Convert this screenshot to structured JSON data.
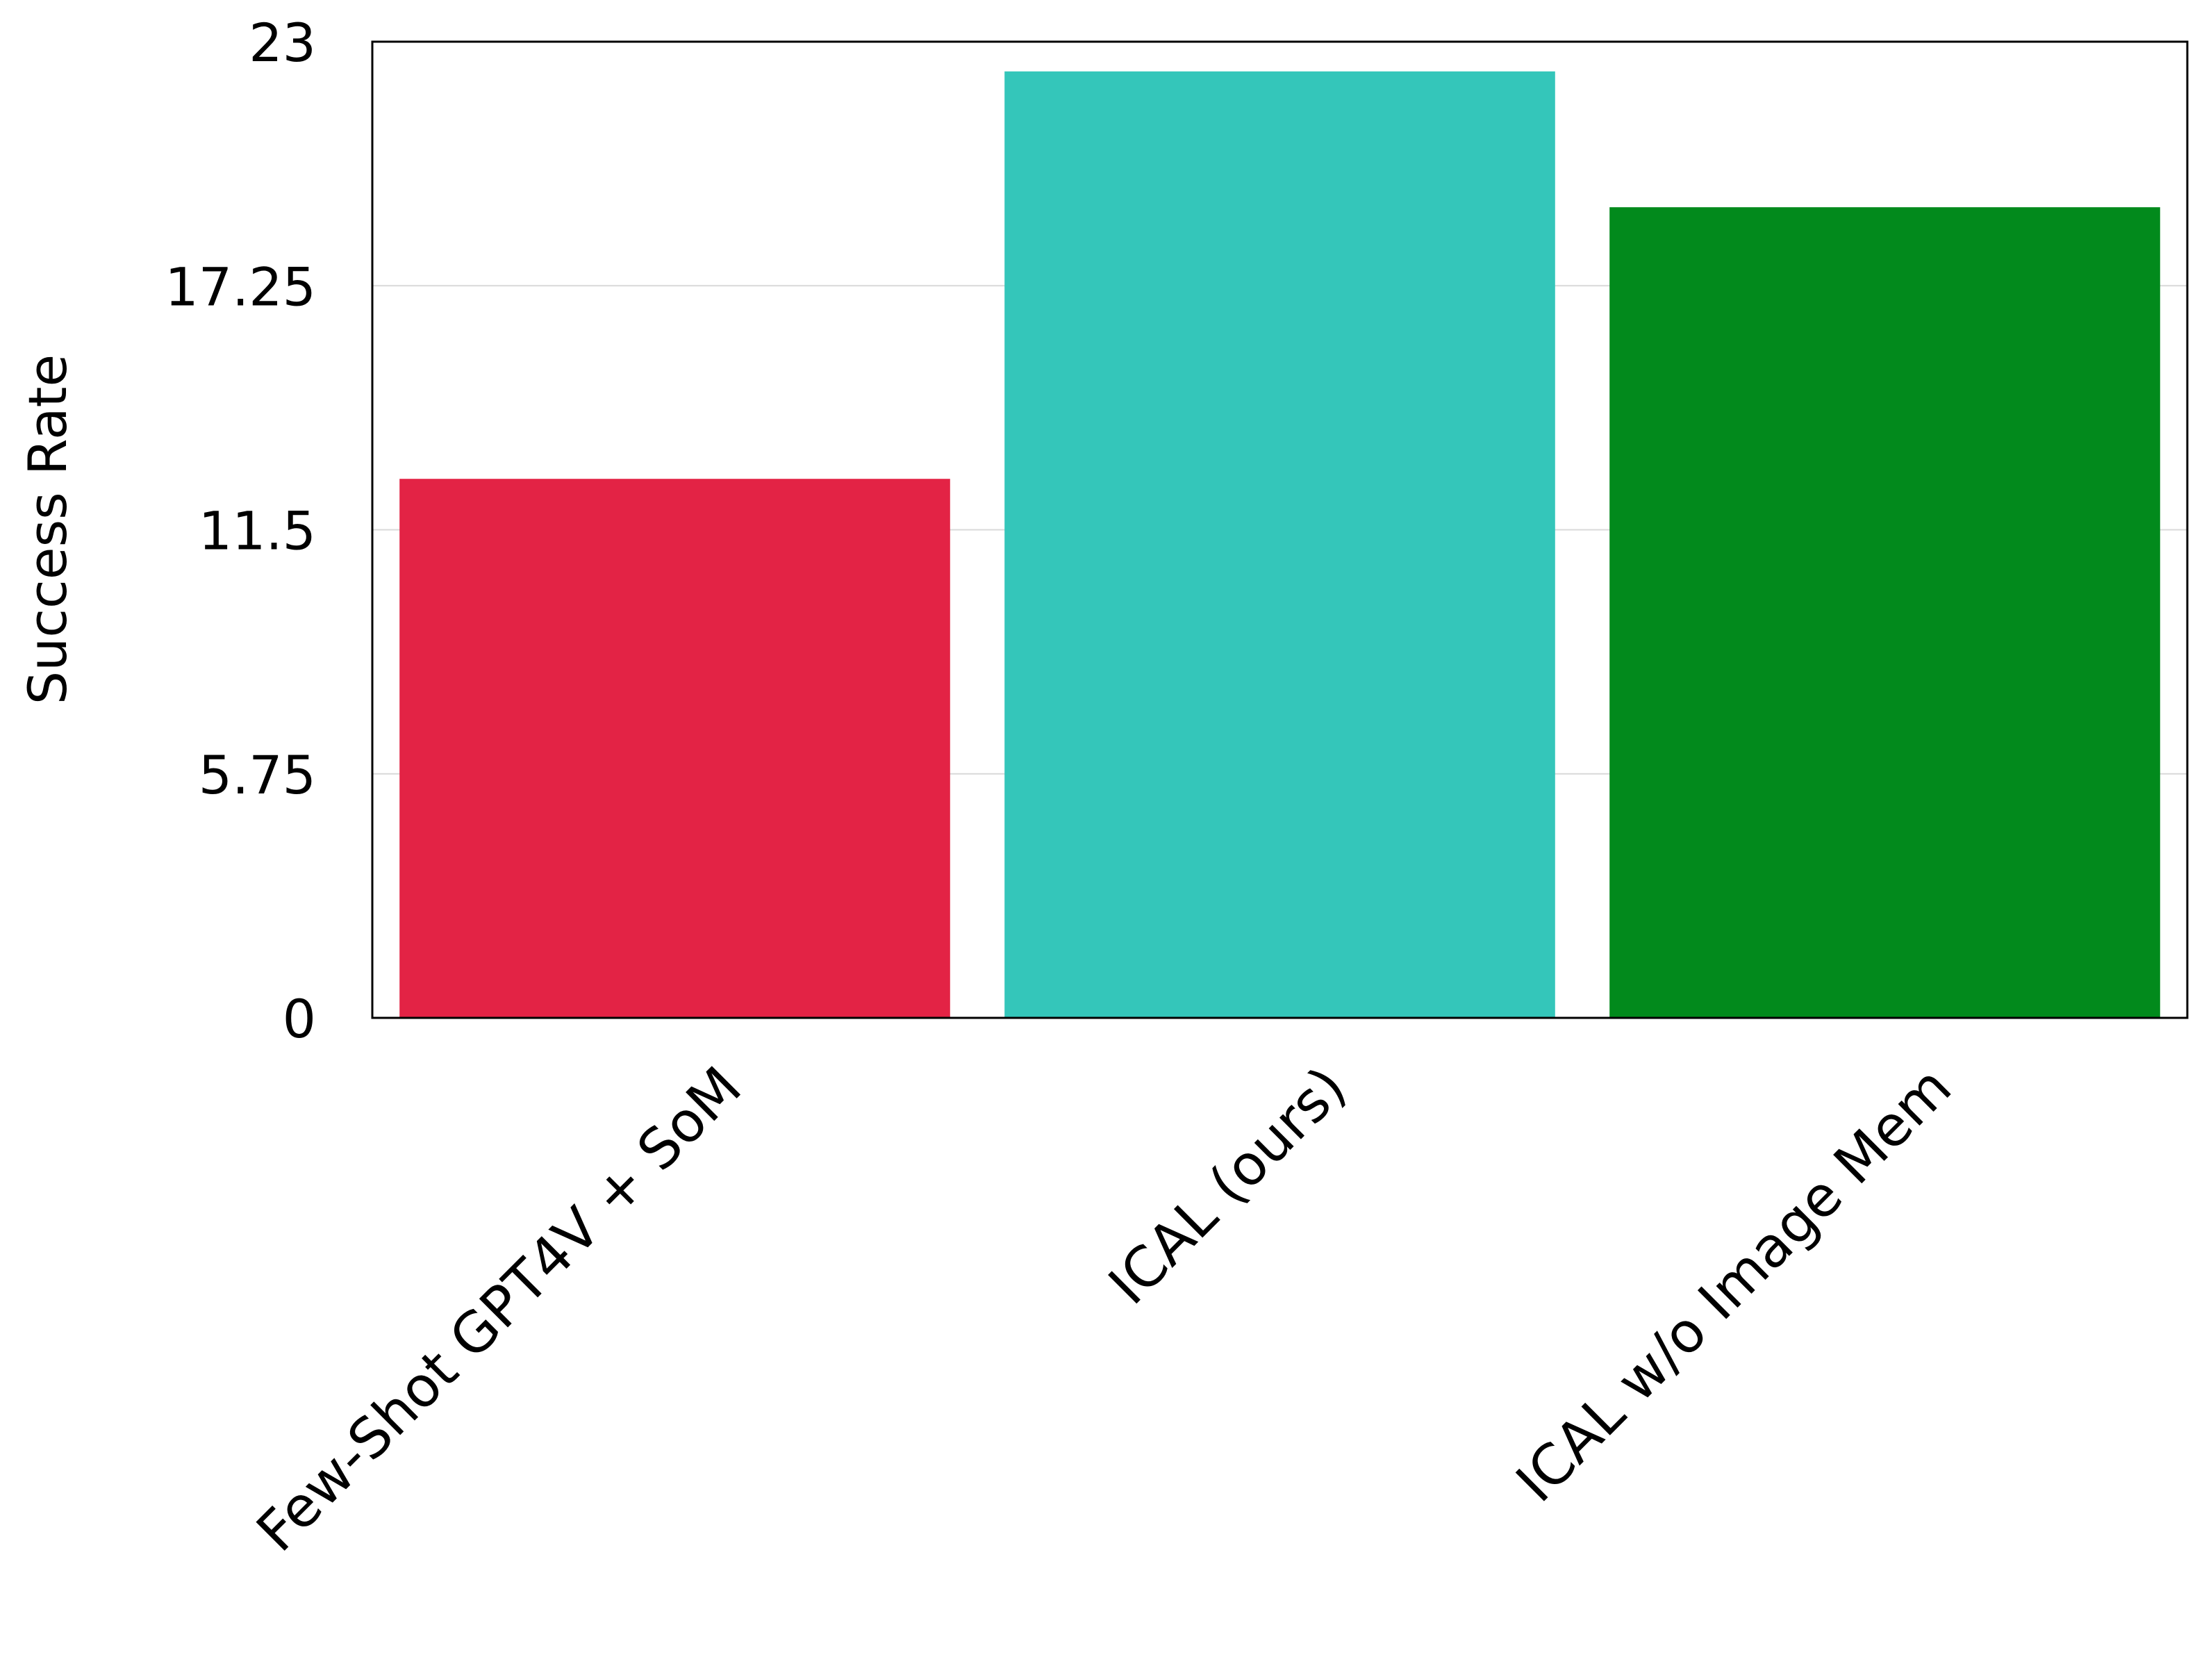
{
  "chart_data": {
    "type": "bar",
    "title": "",
    "xlabel": "",
    "ylabel": "Success Rate",
    "ylim": [
      0,
      23
    ],
    "yticks": [
      0,
      5.75,
      11.5,
      17.25,
      23
    ],
    "ytick_labels": [
      "0",
      "5.75",
      "11.5",
      "17.25",
      "23"
    ],
    "grid": "horizontal",
    "legend": "none",
    "categories": [
      "Few-Shot GPT4V + SoM",
      "ICAL (ours)",
      "ICAL w/o Image Mem"
    ],
    "values": [
      12.7,
      22.3,
      19.1
    ],
    "colors": [
      "#e32345",
      "#34c6ba",
      "#028a1c"
    ]
  }
}
